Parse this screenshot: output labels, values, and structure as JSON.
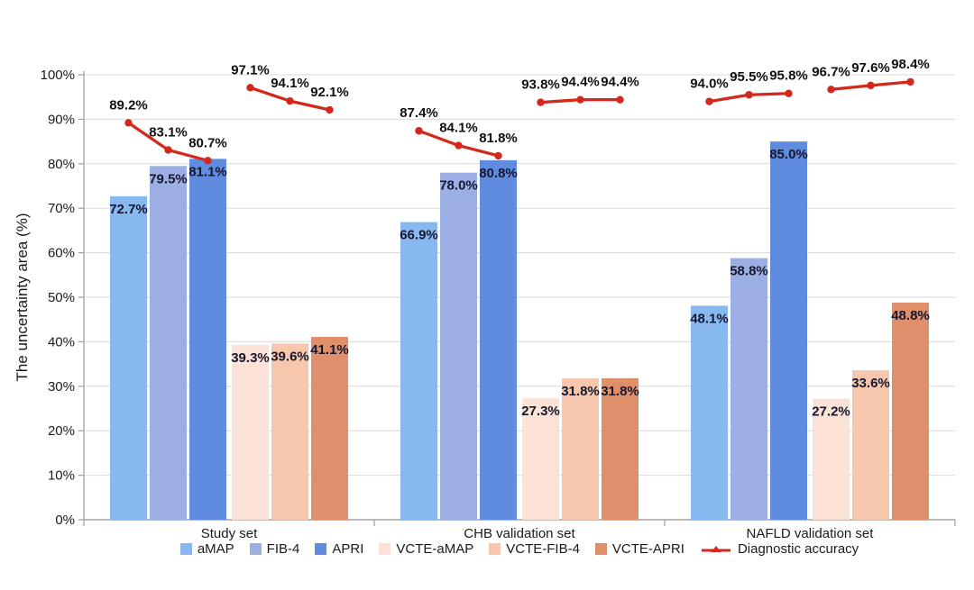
{
  "chart_data": {
    "type": "bar",
    "title": "",
    "ylabel": "The uncertainty area (%)",
    "xlabel": "",
    "ylim": [
      0,
      100
    ],
    "yticks": [
      "0%",
      "10%",
      "20%",
      "30%",
      "40%",
      "50%",
      "60%",
      "70%",
      "80%",
      "90%",
      "100%"
    ],
    "grid": true,
    "legend_position": "bottom",
    "value_label_format": "one-decimal-percent",
    "categories": [
      "Study set",
      "CHB validation set",
      "NAFLD validation set"
    ],
    "series": [
      {
        "name": "aMAP",
        "type": "bar",
        "color": "#87B9F0",
        "values": [
          72.7,
          66.9,
          48.1
        ]
      },
      {
        "name": "FIB-4",
        "type": "bar",
        "color": "#9BAFE4",
        "values": [
          79.5,
          78.0,
          58.8
        ]
      },
      {
        "name": "APRI",
        "type": "bar",
        "color": "#5F8CDE",
        "values": [
          81.1,
          80.8,
          85.0
        ]
      },
      {
        "name": "VCTE-aMAP",
        "type": "bar",
        "color": "#FAE2D7",
        "values": [
          39.3,
          27.3,
          27.2
        ]
      },
      {
        "name": "VCTE-FIB-4",
        "type": "bar",
        "color": "#F6C7AC",
        "values": [
          39.6,
          31.8,
          33.6
        ]
      },
      {
        "name": "VCTE-APRI",
        "type": "bar",
        "color": "#DF8F69",
        "values": [
          41.1,
          31.8,
          48.8
        ]
      }
    ],
    "line_series": {
      "name": "Diagnostic accuracy",
      "type": "line",
      "color": "#D3281C",
      "values": [
        [
          89.2,
          83.1,
          80.7,
          97.1,
          94.1,
          92.1
        ],
        [
          87.4,
          84.1,
          81.8,
          93.8,
          94.4,
          94.4
        ],
        [
          94.0,
          95.5,
          95.8,
          96.7,
          97.6,
          98.4
        ]
      ]
    }
  },
  "colors": {
    "background": "#FFFFFF",
    "grid": "#DADADA",
    "axis": "#A3A3A3",
    "tick_text": "#1A1A1A",
    "bar_label": "#16162C",
    "line_label": "#101010"
  }
}
